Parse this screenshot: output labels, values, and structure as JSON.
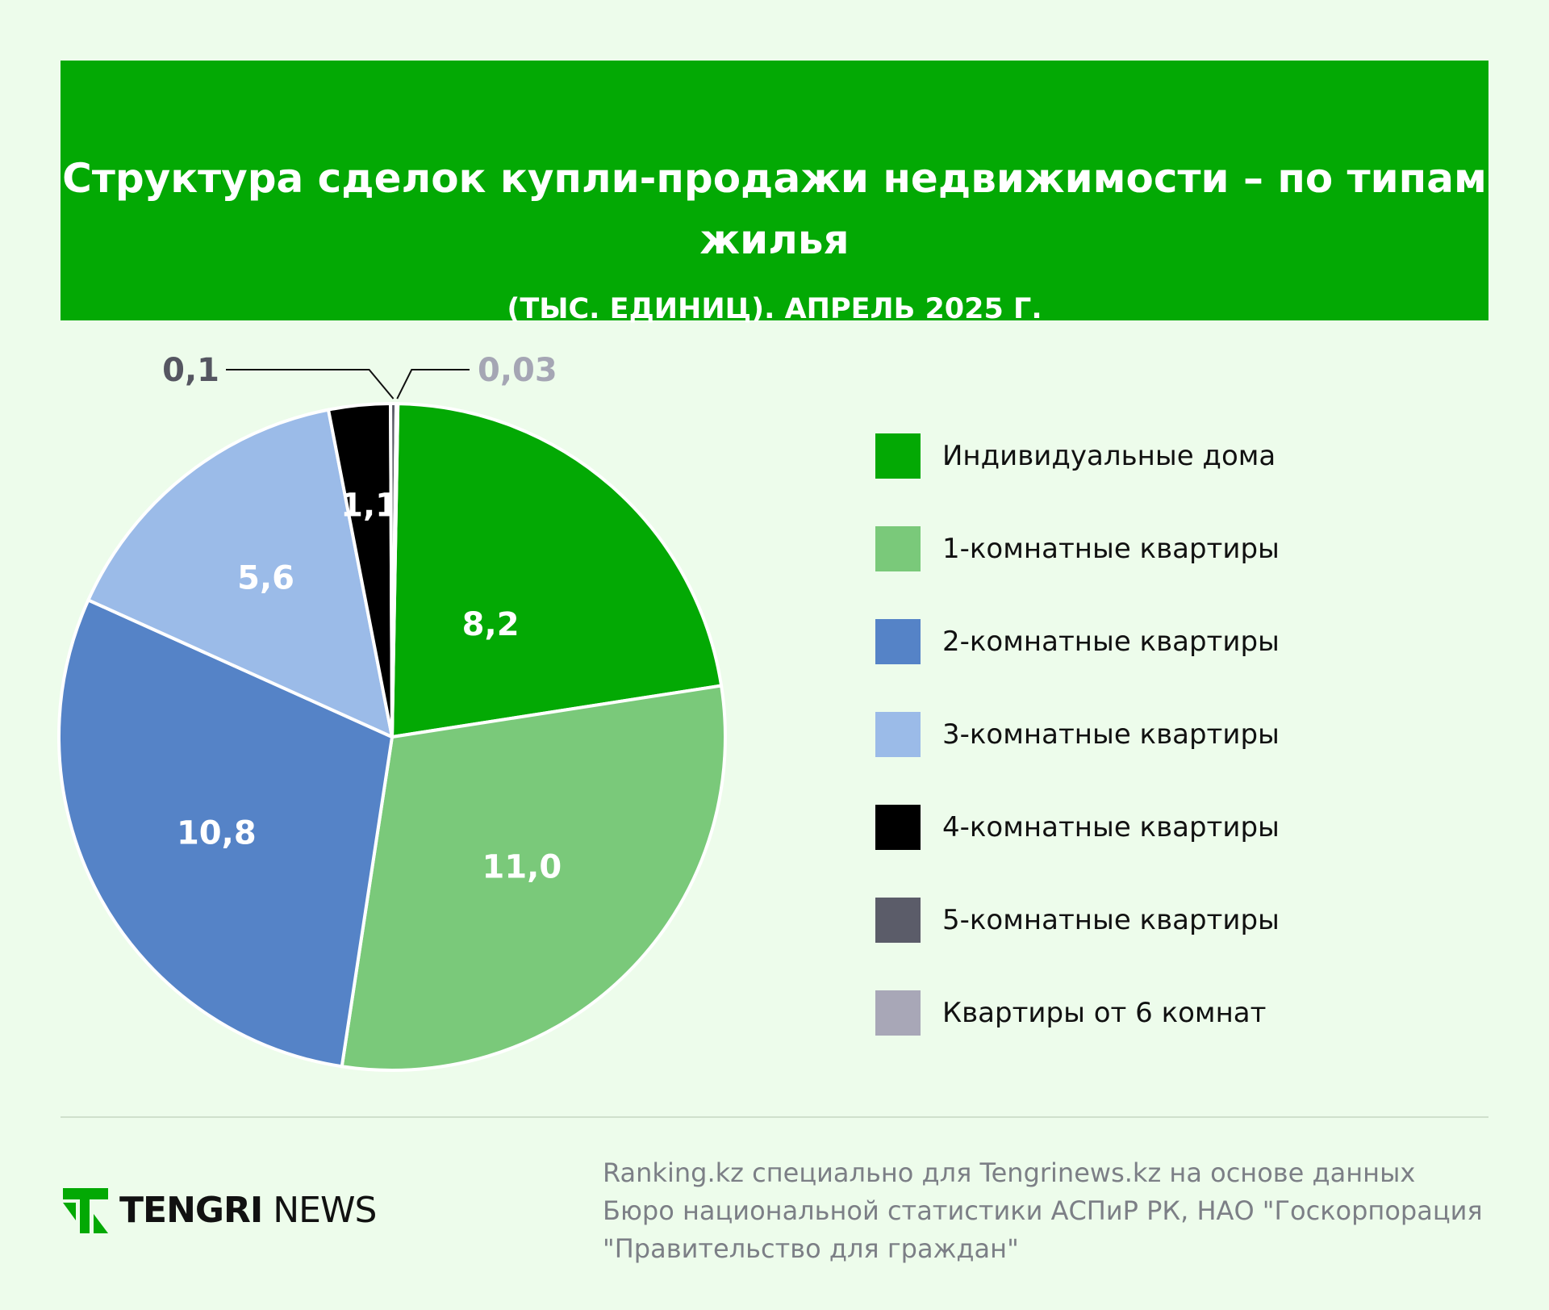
{
  "header": {
    "title": "Структура сделок купли-продажи недвижимости – по типам жилья",
    "subtitle": "(ТЫС. ЕДИНИЦ). АПРЕЛЬ 2025 Г."
  },
  "chart_data": {
    "type": "pie",
    "unit": "тыс. единиц",
    "legend_position": "right",
    "slices": [
      {
        "label": "Индивидуальные дома",
        "value": 8.2,
        "display": "8,2",
        "color": "#03a904",
        "label_color": "#ffffff"
      },
      {
        "label": "1-комнатные квартиры",
        "value": 11.0,
        "display": "11,0",
        "color": "#7ac97a",
        "label_color": "#ffffff"
      },
      {
        "label": "2-комнатные квартиры",
        "value": 10.8,
        "display": "10,8",
        "color": "#5583c7",
        "label_color": "#ffffff"
      },
      {
        "label": "3-комнатные квартиры",
        "value": 5.6,
        "display": "5,6",
        "color": "#9bbbe8",
        "label_color": "#ffffff"
      },
      {
        "label": "4-комнатные квартиры",
        "value": 1.1,
        "display": "1,1",
        "color": "#000000",
        "label_color": "#ffffff"
      },
      {
        "label": "5-комнатные квартиры",
        "value": 0.1,
        "display": "0,1",
        "color": "#5b5c69",
        "label_color": "#555661"
      },
      {
        "label": "Квартиры от 6 комнат",
        "value": 0.03,
        "display": "0,03",
        "color": "#a8a7b7",
        "label_color": "#a5a6b4"
      }
    ]
  },
  "footer": {
    "brand_bold": "TENGRI",
    "brand_light": "NEWS",
    "source": "Ranking.kz специально для Tengrinews.kz на основе данных Бюро национальной статистики АСПиР РК, НАО \"Госкорпорация \"Правительство для граждан\""
  },
  "colors": {
    "background": "#edfceb",
    "header": "#03a904",
    "logo": "#03a904"
  }
}
